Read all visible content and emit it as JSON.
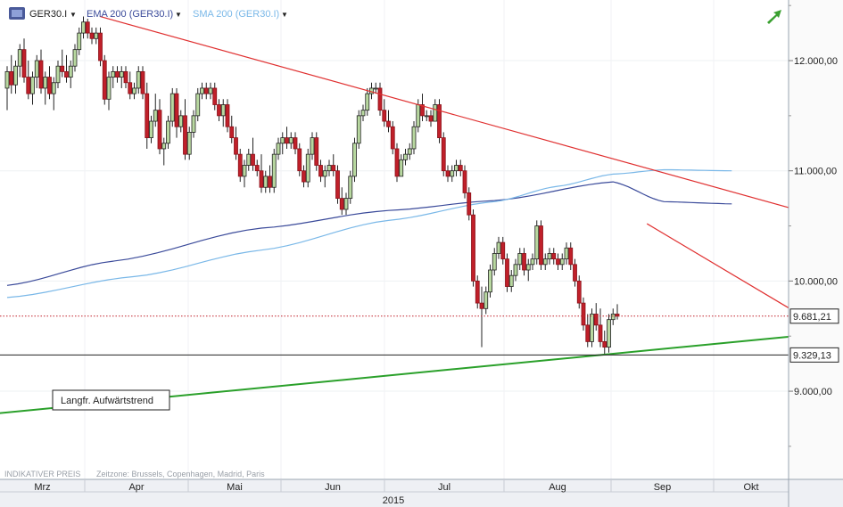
{
  "header": {
    "instrument_icon": "cfd-icon",
    "instrument": "GER30.I",
    "indicators": [
      {
        "label": "EMA 200 (GER30.I)",
        "color": "#3a4a9a"
      },
      {
        "label": "SMA 200 (GER30.I)",
        "color": "#7ab8e8"
      }
    ],
    "trend_icon": "trend-arrow-icon"
  },
  "footer": {
    "indicative_price": "INDIKATIVER PREIS",
    "timezone": "Zeitzone: Brussels, Copenhagen, Madrid, Paris",
    "year": "2015"
  },
  "colors": {
    "up": "#b8d8a0",
    "down": "#c0202a",
    "resistance": "#e03030",
    "support": "#2aa02a",
    "ema": "#3a4a9a",
    "sma": "#7ab8e8"
  },
  "chart_data": {
    "type": "candlestick",
    "instrument": "GER30.I",
    "y_range": [
      8200,
      12550
    ],
    "y_ticks": [
      9000,
      10000,
      11000,
      12000
    ],
    "y_tick_labels": [
      "9.000,00",
      "10.000,00",
      "11.000,00",
      "12.000,00"
    ],
    "x_months": [
      "Mrz",
      "Apr",
      "Mai",
      "Jun",
      "Jul",
      "Aug",
      "Sep",
      "Okt"
    ],
    "price_markers": [
      {
        "value": 9681.21,
        "label": "9.681,21",
        "style": "current-price-dotted"
      },
      {
        "value": 9329.13,
        "label": "9.329,13",
        "style": "horizontal-line"
      }
    ],
    "annotation": "Langfr. Aufwärtstrend",
    "candles_ohlc": [
      [
        11750,
        11950,
        11550,
        11900
      ],
      [
        11900,
        12050,
        11700,
        11780
      ],
      [
        11780,
        12000,
        11700,
        11950
      ],
      [
        11950,
        12150,
        11850,
        12100
      ],
      [
        12100,
        12200,
        11800,
        11850
      ],
      [
        11850,
        12000,
        11650,
        11700
      ],
      [
        11700,
        11900,
        11600,
        11850
      ],
      [
        11850,
        12050,
        11750,
        12000
      ],
      [
        12000,
        12100,
        11700,
        11750
      ],
      [
        11750,
        11900,
        11600,
        11850
      ],
      [
        11850,
        11950,
        11650,
        11700
      ],
      [
        11700,
        11850,
        11550,
        11800
      ],
      [
        11800,
        12000,
        11750,
        11950
      ],
      [
        11950,
        12100,
        11850,
        11900
      ],
      [
        11900,
        12050,
        11800,
        11850
      ],
      [
        11850,
        12000,
        11750,
        11950
      ],
      [
        11950,
        12150,
        11900,
        12100
      ],
      [
        12100,
        12300,
        12050,
        12250
      ],
      [
        12250,
        12400,
        12200,
        12350
      ],
      [
        12350,
        12380,
        12200,
        12250
      ],
      [
        12250,
        12300,
        12150,
        12200
      ],
      [
        12200,
        12300,
        12150,
        12250
      ],
      [
        12250,
        12300,
        11950,
        12000
      ],
      [
        12000,
        12050,
        11600,
        11650
      ],
      [
        11650,
        11900,
        11550,
        11850
      ],
      [
        11850,
        11950,
        11750,
        11900
      ],
      [
        11900,
        11950,
        11800,
        11850
      ],
      [
        11850,
        11950,
        11750,
        11900
      ],
      [
        11900,
        11950,
        11750,
        11800
      ],
      [
        11800,
        11900,
        11650,
        11700
      ],
      [
        11700,
        11800,
        11650,
        11750
      ],
      [
        11750,
        11950,
        11700,
        11900
      ],
      [
        11900,
        11950,
        11650,
        11700
      ],
      [
        11700,
        11800,
        11200,
        11300
      ],
      [
        11300,
        11500,
        11250,
        11450
      ],
      [
        11450,
        11700,
        11400,
        11550
      ],
      [
        11550,
        11650,
        11150,
        11200
      ],
      [
        11200,
        11300,
        11050,
        11250
      ],
      [
        11250,
        11500,
        11200,
        11450
      ],
      [
        11450,
        11750,
        11400,
        11700
      ],
      [
        11700,
        11750,
        11300,
        11400
      ],
      [
        11400,
        11550,
        11350,
        11500
      ],
      [
        11500,
        11650,
        11100,
        11150
      ],
      [
        11150,
        11400,
        11100,
        11350
      ],
      [
        11350,
        11550,
        11300,
        11500
      ],
      [
        11500,
        11750,
        11450,
        11700
      ],
      [
        11700,
        11800,
        11650,
        11750
      ],
      [
        11750,
        11800,
        11650,
        11700
      ],
      [
        11700,
        11800,
        11650,
        11750
      ],
      [
        11750,
        11800,
        11550,
        11600
      ],
      [
        11600,
        11650,
        11450,
        11500
      ],
      [
        11500,
        11650,
        11400,
        11600
      ],
      [
        11600,
        11650,
        11350,
        11400
      ],
      [
        11400,
        11500,
        11250,
        11300
      ],
      [
        11300,
        11400,
        11100,
        11150
      ],
      [
        11150,
        11200,
        10900,
        10950
      ],
      [
        10950,
        11100,
        10850,
        11050
      ],
      [
        11050,
        11200,
        11000,
        11150
      ],
      [
        11150,
        11300,
        11000,
        11050
      ],
      [
        11050,
        11100,
        10950,
        11000
      ],
      [
        11000,
        11150,
        10800,
        10850
      ],
      [
        10850,
        11000,
        10800,
        10950
      ],
      [
        10950,
        11050,
        10800,
        10850
      ],
      [
        10850,
        11200,
        10800,
        11150
      ],
      [
        11150,
        11300,
        11100,
        11250
      ],
      [
        11250,
        11350,
        11150,
        11300
      ],
      [
        11300,
        11400,
        11200,
        11250
      ],
      [
        11250,
        11350,
        11200,
        11300
      ],
      [
        11300,
        11350,
        11150,
        11200
      ],
      [
        11200,
        11250,
        10950,
        11000
      ],
      [
        11000,
        11050,
        10850,
        10900
      ],
      [
        10900,
        11200,
        10850,
        11150
      ],
      [
        11150,
        11350,
        11100,
        11300
      ],
      [
        11300,
        11350,
        11000,
        11050
      ],
      [
        11050,
        11100,
        10900,
        10950
      ],
      [
        10950,
        11050,
        10850,
        11000
      ],
      [
        11000,
        11100,
        10950,
        11050
      ],
      [
        11050,
        11150,
        10950,
        11000
      ],
      [
        11000,
        11050,
        10700,
        10750
      ],
      [
        10750,
        10850,
        10600,
        10650
      ],
      [
        10650,
        10800,
        10600,
        10750
      ],
      [
        10750,
        11000,
        10700,
        10950
      ],
      [
        10950,
        11300,
        10900,
        11250
      ],
      [
        11250,
        11550,
        11200,
        11500
      ],
      [
        11500,
        11600,
        11450,
        11550
      ],
      [
        11550,
        11750,
        11500,
        11700
      ],
      [
        11700,
        11800,
        11650,
        11750
      ],
      [
        11750,
        11800,
        11700,
        11750
      ],
      [
        11750,
        11800,
        11500,
        11550
      ],
      [
        11550,
        11650,
        11400,
        11450
      ],
      [
        11450,
        11550,
        11350,
        11400
      ],
      [
        11400,
        11450,
        11150,
        11200
      ],
      [
        11200,
        11250,
        10900,
        10950
      ],
      [
        10950,
        11150,
        10950,
        11100
      ],
      [
        11100,
        11200,
        11050,
        11150
      ],
      [
        11150,
        11250,
        11100,
        11200
      ],
      [
        11200,
        11450,
        11150,
        11400
      ],
      [
        11400,
        11650,
        11350,
        11600
      ],
      [
        11600,
        11700,
        11450,
        11500
      ],
      [
        11500,
        11550,
        11450,
        11500
      ],
      [
        11500,
        11550,
        11400,
        11450
      ],
      [
        11450,
        11650,
        11450,
        11600
      ],
      [
        11600,
        11650,
        11250,
        11300
      ],
      [
        11300,
        11350,
        10950,
        11000
      ],
      [
        11000,
        11050,
        10900,
        10950
      ],
      [
        10950,
        11050,
        10900,
        11000
      ],
      [
        11000,
        11100,
        10950,
        11050
      ],
      [
        11050,
        11100,
        10950,
        11000
      ],
      [
        11000,
        11050,
        10750,
        10800
      ],
      [
        10800,
        10850,
        10550,
        10600
      ],
      [
        10600,
        10650,
        9950,
        10000
      ],
      [
        10000,
        10050,
        9750,
        9800
      ],
      [
        9800,
        9950,
        9400,
        9750
      ],
      [
        9750,
        9950,
        9700,
        9900
      ],
      [
        9900,
        10150,
        9850,
        10100
      ],
      [
        10100,
        10300,
        10050,
        10250
      ],
      [
        10250,
        10400,
        10200,
        10350
      ],
      [
        10350,
        10400,
        10150,
        10200
      ],
      [
        10200,
        10250,
        9900,
        9950
      ],
      [
        9950,
        10100,
        9900,
        10050
      ],
      [
        10050,
        10200,
        10000,
        10150
      ],
      [
        10150,
        10300,
        10100,
        10250
      ],
      [
        10250,
        10300,
        10050,
        10100
      ],
      [
        10100,
        10200,
        10000,
        10150
      ],
      [
        10150,
        10250,
        10100,
        10200
      ],
      [
        10200,
        10550,
        10150,
        10500
      ],
      [
        10500,
        10550,
        10100,
        10150
      ],
      [
        10150,
        10250,
        10100,
        10200
      ],
      [
        10200,
        10300,
        10150,
        10250
      ],
      [
        10250,
        10300,
        10150,
        10200
      ],
      [
        10200,
        10250,
        10100,
        10150
      ],
      [
        10150,
        10250,
        10100,
        10200
      ],
      [
        10200,
        10350,
        10150,
        10300
      ],
      [
        10300,
        10350,
        10100,
        10150
      ],
      [
        10150,
        10200,
        9950,
        10000
      ],
      [
        10000,
        10050,
        9750,
        9800
      ],
      [
        9800,
        9850,
        9550,
        9600
      ],
      [
        9600,
        9700,
        9400,
        9450
      ],
      [
        9450,
        9750,
        9400,
        9700
      ],
      [
        9700,
        9800,
        9550,
        9600
      ],
      [
        9600,
        9750,
        9400,
        9450
      ],
      [
        9450,
        9550,
        9330,
        9400
      ],
      [
        9400,
        9700,
        9350,
        9650
      ],
      [
        9650,
        9750,
        9600,
        9700
      ],
      [
        9700,
        9790,
        9650,
        9681
      ]
    ],
    "ema_200": [
      [
        0,
        9960
      ],
      [
        25,
        10180
      ],
      [
        60,
        10480
      ],
      [
        90,
        10640
      ],
      [
        115,
        10730
      ],
      [
        143,
        10900
      ],
      [
        155,
        10720
      ],
      [
        171,
        10700
      ]
    ],
    "sma_200": [
      [
        0,
        9850
      ],
      [
        30,
        10040
      ],
      [
        60,
        10280
      ],
      [
        90,
        10550
      ],
      [
        115,
        10720
      ],
      [
        130,
        10860
      ],
      [
        143,
        10970
      ],
      [
        155,
        11010
      ],
      [
        171,
        11000
      ]
    ],
    "trendlines": [
      {
        "name": "resistance-long",
        "points": [
          [
            22,
            12400
          ],
          [
            186,
            10650
          ]
        ]
      },
      {
        "name": "resistance-short",
        "points": [
          [
            151,
            10520
          ],
          [
            186,
            9720
          ]
        ]
      },
      {
        "name": "support-longterm",
        "points": [
          [
            -2,
            8800
          ],
          [
            186,
            9500
          ]
        ]
      }
    ]
  }
}
